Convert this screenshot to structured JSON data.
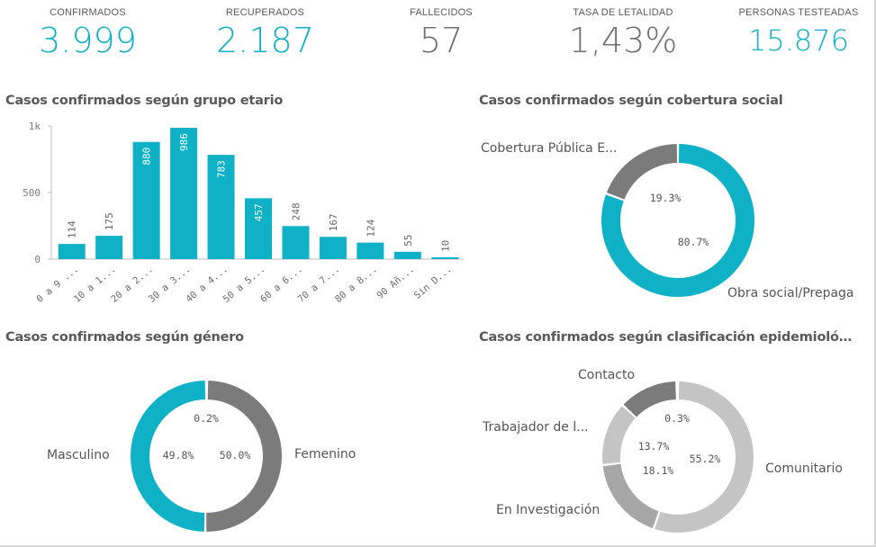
{
  "colors": {
    "accent": "#0fb1c6",
    "dark_gray": "#7b7b7b",
    "mid_gray": "#a6a6a6",
    "light_gray": "#c4c4c4",
    "label_gray": "#595959",
    "axis_gray": "#888888"
  },
  "kpis": [
    {
      "label": "CONFIRMADOS",
      "value": "3.999",
      "color": "#0fb1c6"
    },
    {
      "label": "RECUPERADOS",
      "value": "2.187",
      "color": "#0fb1c6"
    },
    {
      "label": "FALLECIDOS",
      "value": "57",
      "color": "#707070"
    },
    {
      "label": "TASA DE LETALIDAD",
      "value": "1,43%",
      "color": "#707070"
    },
    {
      "label": "PERSONAS TESTEADAS",
      "value": "15.876",
      "color": "#0fb1c6"
    }
  ],
  "sections": {
    "age": {
      "title": "Casos confirmados según grupo etario"
    },
    "coverage": {
      "title": "Casos confirmados según cobertura social"
    },
    "gender": {
      "title": "Casos confirmados según género"
    },
    "epi": {
      "title": "Casos confirmados según clasificación epidemioló…"
    }
  },
  "chart_data": [
    {
      "type": "bar",
      "title": "Casos confirmados según grupo etario",
      "categories": [
        "0 a 9 ...",
        "10 a 1...",
        "20 a 2...",
        "30 a 3...",
        "40 a 4...",
        "50 a 5...",
        "60 a 6...",
        "70 a 7...",
        "80 a 8...",
        "90 Añ...",
        "Sin D..."
      ],
      "values": [
        114,
        175,
        880,
        986,
        783,
        457,
        248,
        167,
        124,
        55,
        10
      ],
      "ytick_labels": [
        "0",
        "500",
        "1k"
      ],
      "yticks": [
        0,
        500,
        1000
      ],
      "ylim": [
        0,
        1000
      ],
      "grid": false
    },
    {
      "type": "pie",
      "title": "Casos confirmados según cobertura social",
      "donut": true,
      "slices": [
        {
          "label": "Obra social/Prepaga",
          "value": 80.7,
          "pct_label": "80.7%",
          "color": "#0fb1c6"
        },
        {
          "label": "Cobertura Pública E...",
          "value": 19.3,
          "pct_label": "19.3%",
          "color": "#7b7b7b"
        }
      ]
    },
    {
      "type": "pie",
      "title": "Casos confirmados según género",
      "donut": true,
      "slices": [
        {
          "label": "Femenino",
          "value": 50.0,
          "pct_label": "50.0%",
          "color": "#7b7b7b"
        },
        {
          "label": "Masculino",
          "value": 49.8,
          "pct_label": "49.8%",
          "color": "#0fb1c6"
        },
        {
          "label": "",
          "value": 0.2,
          "pct_label": "0.2%",
          "color": "#c4c4c4"
        }
      ]
    },
    {
      "type": "pie",
      "title": "Casos confirmados según clasificación epidemioló…",
      "donut": true,
      "slices": [
        {
          "label": "Comunitario",
          "value": 55.2,
          "pct_label": "55.2%",
          "color": "#c4c4c4"
        },
        {
          "label": "En Investigación",
          "value": 18.1,
          "pct_label": "18.1%",
          "color": "#a6a6a6"
        },
        {
          "label": "Trabajador de l...",
          "value": 13.7,
          "pct_label": "13.7%",
          "color": "#c4c4c4"
        },
        {
          "label": "Contacto",
          "value": 12.7,
          "pct_label": "",
          "color": "#7b7b7b"
        },
        {
          "label": "",
          "value": 0.3,
          "pct_label": "0.3%",
          "color": "#c4c4c4"
        }
      ]
    }
  ]
}
